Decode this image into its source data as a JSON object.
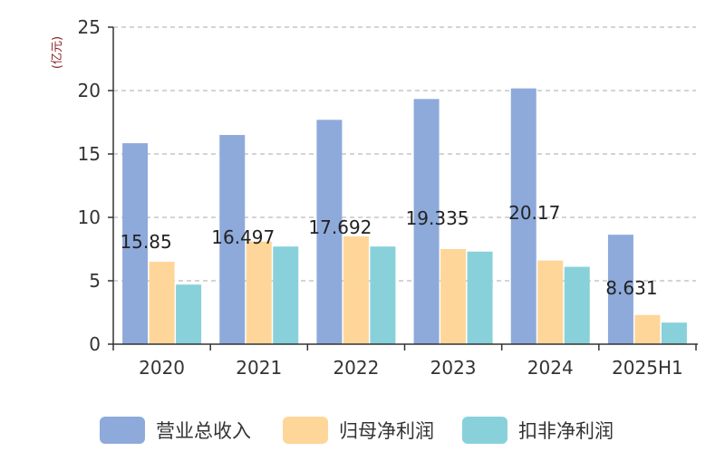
{
  "chart_data": {
    "type": "bar",
    "title": "",
    "ylabel": "(亿元)",
    "xlabel": "",
    "ylim": [
      0,
      25
    ],
    "yticks": [
      0,
      5,
      10,
      15,
      20,
      25
    ],
    "categories": [
      "2020",
      "2021",
      "2022",
      "2023",
      "2024",
      "2025H1"
    ],
    "series": [
      {
        "name": "营业总收入",
        "color": "#8eaadb",
        "values": [
          15.85,
          16.497,
          17.692,
          19.335,
          20.17,
          8.631
        ]
      },
      {
        "name": "归母净利润",
        "color": "#ffd699",
        "values": [
          6.5,
          8.1,
          8.5,
          7.5,
          6.6,
          2.3
        ]
      },
      {
        "name": "扣非净利润",
        "color": "#88d1da",
        "values": [
          4.7,
          7.7,
          7.7,
          7.3,
          6.1,
          1.7
        ]
      }
    ],
    "data_labels": {
      "series": "营业总收入",
      "texts": [
        "15.85",
        "16.497",
        "17.692",
        "19.335",
        "20.17",
        "8.631"
      ]
    },
    "grid": true,
    "legend_position": "bottom"
  }
}
